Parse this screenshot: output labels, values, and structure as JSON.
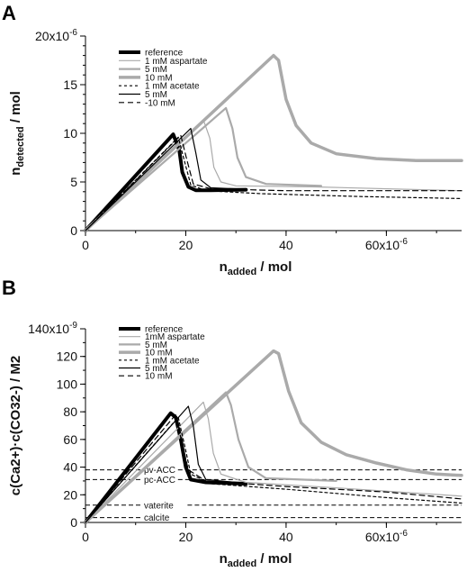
{
  "chart_data": [
    {
      "panel": "A",
      "type": "line",
      "xlabel": "n",
      "xlabel_sub": "added",
      "xlabel_unit": " / mol",
      "ylabel": "n",
      "ylabel_sub": "detected",
      "ylabel_unit": " / mol",
      "xlim": [
        0,
        7.5e-05
      ],
      "ylim": [
        0,
        2e-05
      ],
      "x_ticks": [
        {
          "v": 0,
          "label": "0"
        },
        {
          "v": 2e-05,
          "label": "20"
        },
        {
          "v": 4e-05,
          "label": "40"
        },
        {
          "v": 6e-05,
          "label": "60x10-6",
          "exp_base": "60x10",
          "exp": "-6"
        }
      ],
      "x_minor_step": 1e-05,
      "y_ticks": [
        {
          "v": 0,
          "label": "0"
        },
        {
          "v": 5e-06,
          "label": "5"
        },
        {
          "v": 1e-05,
          "label": "10"
        },
        {
          "v": 1.5e-05,
          "label": "15"
        },
        {
          "v": 2e-05,
          "label": "20x10-6",
          "exp_base": "20x10",
          "exp": "-6"
        }
      ],
      "y_minor_step": 1e-06,
      "legend": [
        {
          "label": "reference",
          "color": "#000000",
          "width": 4,
          "dash": ""
        },
        {
          "label": "1 mM aspartate",
          "color": "#aaaaaa",
          "width": 1.2,
          "dash": ""
        },
        {
          "label": "5 mM",
          "color": "#aaaaaa",
          "width": 2.2,
          "dash": ""
        },
        {
          "label": "10 mM",
          "color": "#aaaaaa",
          "width": 3.5,
          "dash": ""
        },
        {
          "label": "1 mM acetate",
          "color": "#000000",
          "width": 1.2,
          "dash": "3,3"
        },
        {
          "label": "5 mM",
          "color": "#000000",
          "width": 1.2,
          "dash": ""
        },
        {
          "label": "-10 mM",
          "color": "#000000",
          "width": 1.2,
          "dash": "6,4"
        }
      ],
      "series": [
        {
          "name": "reference",
          "color": "#000000",
          "width": 4,
          "dash": "",
          "points": [
            [
              0,
              0
            ],
            [
              1.75e-05,
              9.9e-06
            ],
            [
              1.87e-05,
              8.3e-06
            ],
            [
              1.93e-05,
              6e-06
            ],
            [
              2.05e-05,
              4.5e-06
            ],
            [
              2.2e-05,
              4.15e-06
            ],
            [
              2.5e-05,
              4.15e-06
            ],
            [
              3.2e-05,
              4.2e-06
            ]
          ]
        },
        {
          "name": "1 mM aspartate",
          "color": "#aaaaaa",
          "width": 1.2,
          "dash": "",
          "points": [
            [
              0,
              0
            ],
            [
              2.35e-05,
              1.14e-05
            ],
            [
              2.48e-05,
              9.5e-06
            ],
            [
              2.56e-05,
              6.5e-06
            ],
            [
              2.7e-05,
              5e-06
            ],
            [
              3e-05,
              4.6e-06
            ],
            [
              4.5e-05,
              4.5e-06
            ],
            [
              7.5e-05,
              4.1e-06
            ]
          ]
        },
        {
          "name": "5 mM",
          "color": "#aaaaaa",
          "width": 2.2,
          "dash": "",
          "points": [
            [
              0,
              0
            ],
            [
              2.8e-05,
              1.26e-05
            ],
            [
              2.93e-05,
              1.05e-05
            ],
            [
              3.03e-05,
              7.5e-06
            ],
            [
              3.2e-05,
              5.5e-06
            ],
            [
              3.6e-05,
              4.8e-06
            ],
            [
              4.7e-05,
              4.6e-06
            ]
          ]
        },
        {
          "name": "10 mM",
          "color": "#aaaaaa",
          "width": 3.5,
          "dash": "",
          "points": [
            [
              0,
              0
            ],
            [
              3.75e-05,
              1.8e-05
            ],
            [
              3.85e-05,
              1.75e-05
            ],
            [
              4e-05,
              1.35e-05
            ],
            [
              4.2e-05,
              1.08e-05
            ],
            [
              4.5e-05,
              9e-06
            ],
            [
              5e-05,
              7.9e-06
            ],
            [
              5.8e-05,
              7.4e-06
            ],
            [
              6.6e-05,
              7.2e-06
            ],
            [
              7.5e-05,
              7.2e-06
            ]
          ]
        },
        {
          "name": "1 mM acetate",
          "color": "#000000",
          "width": 1.2,
          "dash": "3,3",
          "points": [
            [
              0,
              0
            ],
            [
              1.85e-05,
              9.6e-06
            ],
            [
              1.98e-05,
              7e-06
            ],
            [
              2.1e-05,
              4.7e-06
            ],
            [
              2.4e-05,
              4.1e-06
            ],
            [
              3.5e-05,
              3.8e-06
            ],
            [
              5.5e-05,
              3.5e-06
            ],
            [
              7.5e-05,
              3.3e-06
            ]
          ]
        },
        {
          "name": "5 mM",
          "color": "#000000",
          "width": 1.2,
          "dash": "",
          "points": [
            [
              0,
              0
            ],
            [
              2.1e-05,
              1.05e-05
            ],
            [
              2.2e-05,
              8e-06
            ],
            [
              2.3e-05,
              5.2e-06
            ],
            [
              2.5e-05,
              4.4e-06
            ],
            [
              3e-05,
              4.3e-06
            ]
          ]
        },
        {
          "name": "-10 mM",
          "color": "#000000",
          "width": 1.2,
          "dash": "6,4",
          "points": [
            [
              0,
              0
            ],
            [
              1.9e-05,
              9.8e-06
            ],
            [
              2.02e-05,
              7.3e-06
            ],
            [
              2.15e-05,
              4.8e-06
            ],
            [
              2.5e-05,
              4.3e-06
            ],
            [
              4e-05,
              4.1e-06
            ],
            [
              7.5e-05,
              4.1e-06
            ]
          ]
        }
      ]
    },
    {
      "panel": "B",
      "type": "line",
      "xlabel": "n",
      "xlabel_sub": "added",
      "xlabel_unit": " / mol",
      "ylabel": "c(Ca2+)·c(CO32-) / M2",
      "xlim": [
        0,
        7.5e-05
      ],
      "ylim": [
        0,
        1.4e-07
      ],
      "x_ticks": [
        {
          "v": 0,
          "label": "0"
        },
        {
          "v": 2e-05,
          "label": "20"
        },
        {
          "v": 4e-05,
          "label": "40"
        },
        {
          "v": 6e-05,
          "label": "60x10-6",
          "exp_base": "60x10",
          "exp": "-6"
        }
      ],
      "x_minor_step": 1e-05,
      "y_ticks": [
        {
          "v": 0,
          "label": "0"
        },
        {
          "v": 2e-08,
          "label": "20"
        },
        {
          "v": 4e-08,
          "label": "40"
        },
        {
          "v": 6e-08,
          "label": "60"
        },
        {
          "v": 8e-08,
          "label": "80"
        },
        {
          "v": 1e-07,
          "label": "100"
        },
        {
          "v": 1.2e-07,
          "label": "120"
        },
        {
          "v": 1.4e-07,
          "label": "140x10-9",
          "exp_base": "140x10",
          "exp": "-9"
        }
      ],
      "y_minor_step": 1e-08,
      "legend": [
        {
          "label": "reference",
          "color": "#000000",
          "width": 4,
          "dash": ""
        },
        {
          "label": "1mM aspartate",
          "color": "#aaaaaa",
          "width": 1.2,
          "dash": ""
        },
        {
          "label": "5 mM",
          "color": "#aaaaaa",
          "width": 2.2,
          "dash": ""
        },
        {
          "label": "10 mM",
          "color": "#aaaaaa",
          "width": 3.5,
          "dash": ""
        },
        {
          "label": "1 mM acetate",
          "color": "#000000",
          "width": 1.2,
          "dash": "3,3"
        },
        {
          "label": "5 mM",
          "color": "#000000",
          "width": 1.2,
          "dash": ""
        },
        {
          "label": "10 mM",
          "color": "#000000",
          "width": 1.2,
          "dash": "6,4"
        }
      ],
      "reference_lines": [
        {
          "label": "pv-ACC",
          "y": 3.8e-08
        },
        {
          "label": "pc-ACC",
          "y": 3.1e-08
        },
        {
          "label": "vaterite",
          "y": 1.25e-08
        },
        {
          "label": "calcite",
          "y": 3.5e-09
        }
      ],
      "series": [
        {
          "name": "reference",
          "color": "#000000",
          "width": 4,
          "dash": "",
          "points": [
            [
              0,
              0
            ],
            [
              1.7e-05,
              7.9e-08
            ],
            [
              1.8e-05,
              7.6e-08
            ],
            [
              1.9e-05,
              6e-08
            ],
            [
              2e-05,
              4e-08
            ],
            [
              2.1e-05,
              3.1e-08
            ],
            [
              2.4e-05,
              2.9e-08
            ],
            [
              3.2e-05,
              2.8e-08
            ]
          ]
        },
        {
          "name": "1mM aspartate",
          "color": "#aaaaaa",
          "width": 1.2,
          "dash": "",
          "points": [
            [
              0,
              0
            ],
            [
              2.35e-05,
              8.7e-08
            ],
            [
              2.45e-05,
              7.5e-08
            ],
            [
              2.55e-05,
              5e-08
            ],
            [
              2.7e-05,
              3.5e-08
            ],
            [
              3.2e-05,
              2.9e-08
            ],
            [
              5e-05,
              2.5e-08
            ],
            [
              7.5e-05,
              1.9e-08
            ]
          ]
        },
        {
          "name": "5 mM",
          "color": "#aaaaaa",
          "width": 2.2,
          "dash": "",
          "points": [
            [
              0,
              0
            ],
            [
              2.8e-05,
              9.4e-08
            ],
            [
              2.9e-05,
              8.5e-08
            ],
            [
              3.05e-05,
              6e-08
            ],
            [
              3.25e-05,
              4e-08
            ],
            [
              3.6e-05,
              3.2e-08
            ],
            [
              5e-05,
              3e-08
            ]
          ]
        },
        {
          "name": "10 mM",
          "color": "#aaaaaa",
          "width": 3.5,
          "dash": "",
          "points": [
            [
              0,
              0
            ],
            [
              3.75e-05,
              1.24e-07
            ],
            [
              3.85e-05,
              1.22e-07
            ],
            [
              4.05e-05,
              9.5e-08
            ],
            [
              4.3e-05,
              7.2e-08
            ],
            [
              4.7e-05,
              5.8e-08
            ],
            [
              5.2e-05,
              4.9e-08
            ],
            [
              5.8e-05,
              4.3e-08
            ],
            [
              6.4e-05,
              3.8e-08
            ],
            [
              7e-05,
              3.5e-08
            ],
            [
              7.5e-05,
              3.4e-08
            ]
          ]
        },
        {
          "name": "1 mM acetate",
          "color": "#000000",
          "width": 1.2,
          "dash": "3,3",
          "points": [
            [
              0,
              0
            ],
            [
              1.85e-05,
              7.6e-08
            ],
            [
              1.98e-05,
              5.5e-08
            ],
            [
              2.1e-05,
              3.5e-08
            ],
            [
              2.5e-05,
              2.8e-08
            ],
            [
              4e-05,
              2.4e-08
            ],
            [
              6e-05,
              1.8e-08
            ],
            [
              7.5e-05,
              1.4e-08
            ]
          ]
        },
        {
          "name": "5 mM",
          "color": "#000000",
          "width": 1.2,
          "dash": "",
          "points": [
            [
              0,
              0
            ],
            [
              2.05e-05,
              8.4e-08
            ],
            [
              2.15e-05,
              7e-08
            ],
            [
              2.25e-05,
              4.2e-08
            ],
            [
              2.4e-05,
              3.1e-08
            ],
            [
              3e-05,
              2.9e-08
            ]
          ]
        },
        {
          "name": "10 mM",
          "color": "#000000",
          "width": 1.2,
          "dash": "6,4",
          "points": [
            [
              0,
              0
            ],
            [
              1.8e-05,
              7.8e-08
            ],
            [
              1.92e-05,
              5.8e-08
            ],
            [
              2.05e-05,
              3.8e-08
            ],
            [
              2.4e-05,
              3e-08
            ],
            [
              4e-05,
              2.6e-08
            ],
            [
              6e-05,
              2.2e-08
            ],
            [
              7.5e-05,
              1.7e-08
            ]
          ]
        }
      ]
    }
  ]
}
